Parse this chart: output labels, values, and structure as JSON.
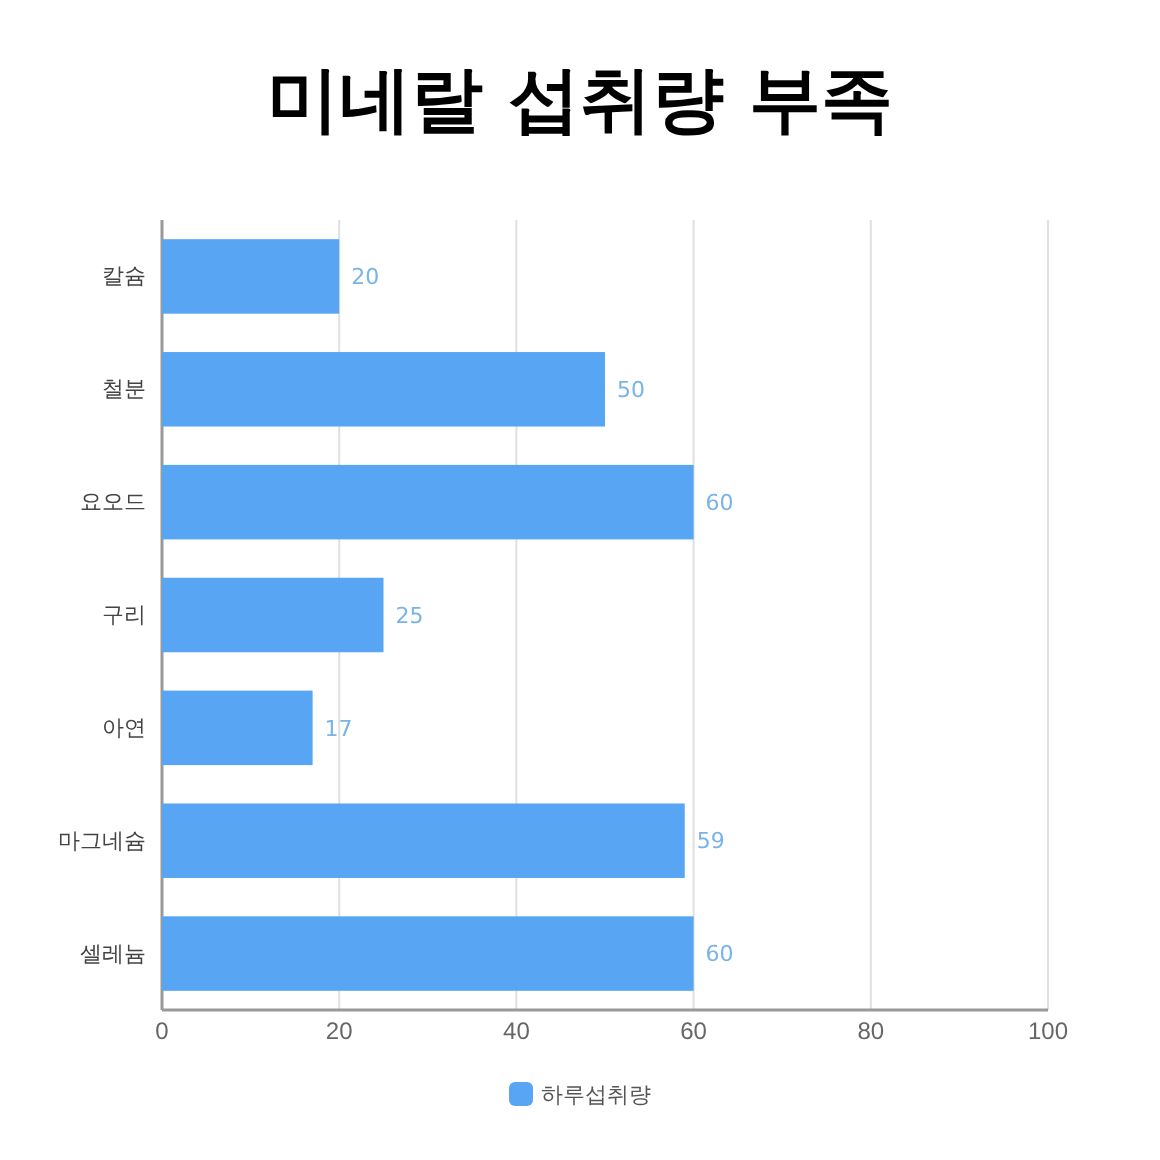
{
  "chart_data": {
    "type": "bar",
    "orientation": "horizontal",
    "title": "미네랄 섭취량 부족",
    "categories": [
      "칼슘",
      "철분",
      "요오드",
      "구리",
      "아연",
      "마그네슘",
      "셀레늄"
    ],
    "series": [
      {
        "name": "하루섭취량",
        "color": "#58a6f3",
        "values": [
          20,
          50,
          60,
          25,
          17,
          59,
          60
        ]
      }
    ],
    "xlim": [
      0,
      100
    ],
    "xticks": [
      0,
      20,
      40,
      60,
      80,
      100
    ],
    "grid": "x",
    "legend": "bottom",
    "data_labels": true
  }
}
